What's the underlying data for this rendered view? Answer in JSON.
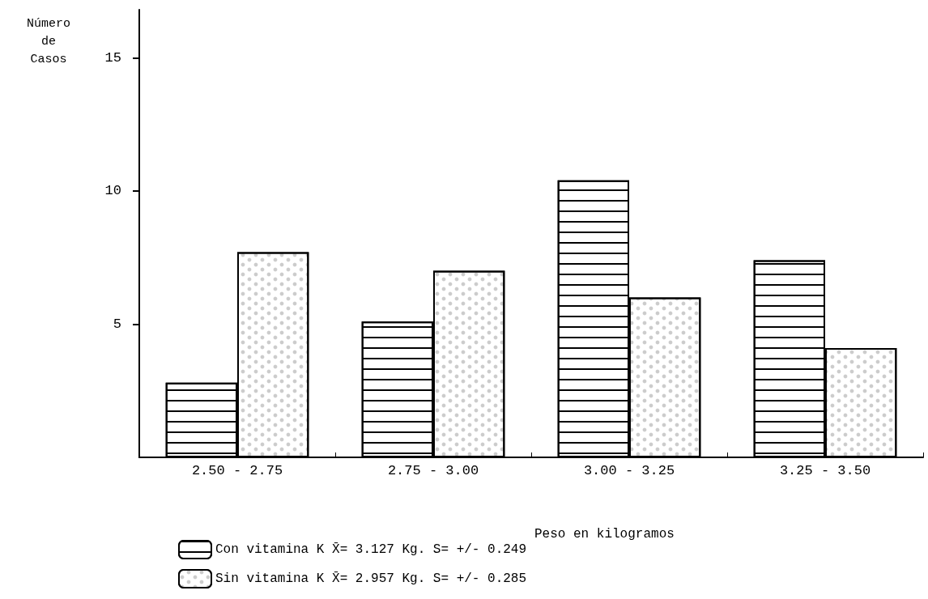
{
  "chart_data": {
    "type": "bar",
    "ylabel": "Número de Casos",
    "xlabel": "Peso en kilogramos",
    "categories": [
      "2.50 - 2.75",
      "2.75 - 3.00",
      "3.00 - 3.25",
      "3.25 - 3.50"
    ],
    "series": [
      {
        "name": "Con vitamina K X̄= 3.127 Kg. S= +/- 0.249",
        "color": "#ffffff",
        "values": [
          2.8,
          5.1,
          10.4,
          7.4
        ]
      },
      {
        "name": "Sin vitamina K X̄= 2.957 Kg. S= +/- 0.285",
        "color": "#ffffff",
        "values": [
          7.7,
          7.0,
          6.0,
          4.1
        ]
      }
    ],
    "ylim": [
      0,
      16.8
    ],
    "yticks": [
      5,
      10,
      15
    ],
    "grid": false,
    "legend": "bottom left"
  }
}
